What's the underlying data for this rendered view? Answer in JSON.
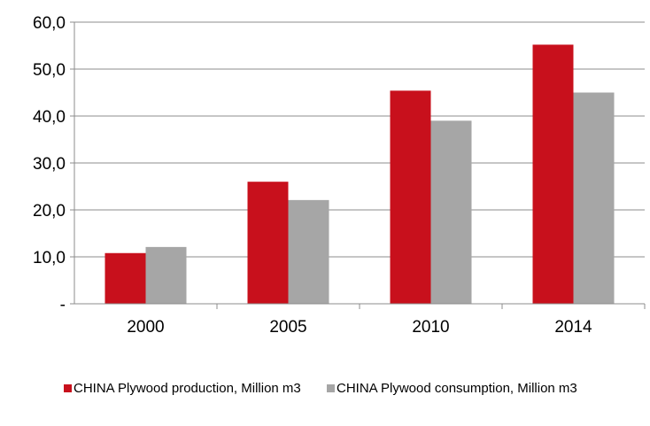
{
  "chart_data": {
    "type": "bar",
    "title": "",
    "xlabel": "",
    "ylabel": "",
    "categories": [
      "2000",
      "2005",
      "2010",
      "2014"
    ],
    "series": [
      {
        "name": "CHINA Plywood production, Million m3",
        "color": "#c8101c",
        "values": [
          10.8,
          26.0,
          45.4,
          55.2
        ]
      },
      {
        "name": "CHINA Plywood consumption, Million m3",
        "color": "#a6a6a6",
        "values": [
          12.1,
          22.1,
          39.0,
          45.0
        ]
      }
    ],
    "ylim": [
      0,
      60
    ],
    "yticks": [
      "-",
      "10,0",
      "20,0",
      "30,0",
      "40,0",
      "50,0",
      "60,0"
    ],
    "grid": true,
    "legend_position": "bottom"
  }
}
